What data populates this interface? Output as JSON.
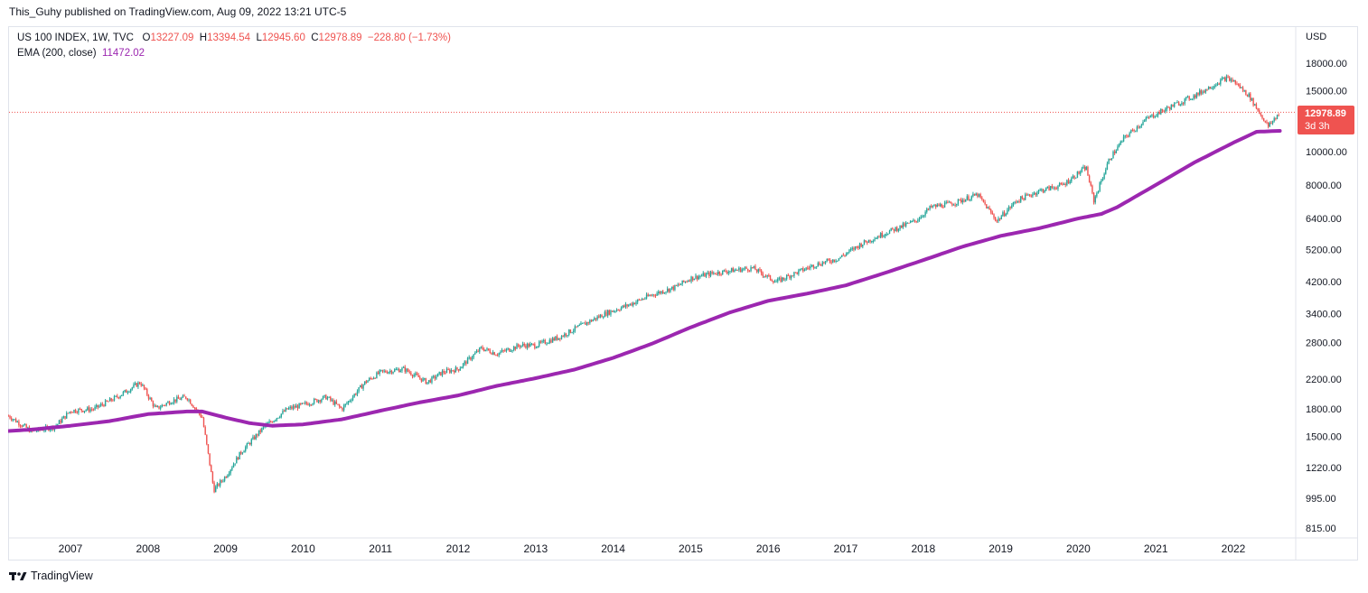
{
  "header": {
    "published_text": "This_Guhy published on TradingView.com, Aug 09, 2022 13:21 UTC-5"
  },
  "legend": {
    "symbol": "US 100 INDEX, 1W, TVC",
    "open_label": "O",
    "open": "13227.09",
    "high_label": "H",
    "high": "13394.54",
    "low_label": "L",
    "low": "12945.60",
    "close_label": "C",
    "close": "12978.89",
    "change": "−228.80 (−1.73%)",
    "ema_label": "EMA (200, close)",
    "ema_value": "11472.02"
  },
  "price_tag": {
    "value": "12978.89",
    "countdown": "3d 3h"
  },
  "footer": {
    "brand": "TradingView"
  },
  "colors": {
    "up": "#26a69a",
    "down": "#ef5350",
    "ema": "#9c27b0",
    "price_line": "#ef5350"
  },
  "chart_data": {
    "type": "candlestick",
    "scale": "log",
    "currency": "USD",
    "y_ticks": [
      18000,
      15000,
      10000,
      8000,
      6400,
      5200,
      4200,
      3400,
      2800,
      2200,
      1800,
      1500,
      1220,
      995,
      815
    ],
    "y_tick_labels": [
      "18000.00",
      "15000.00",
      "10000.00",
      "8000.00",
      "6400.00",
      "5200.00",
      "4200.00",
      "3400.00",
      "2800.00",
      "2200.00",
      "1800.00",
      "1500.00",
      "1220.00",
      "995.00",
      "815.00"
    ],
    "x_ticks": [
      "2007",
      "2008",
      "2009",
      "2010",
      "2011",
      "2012",
      "2013",
      "2014",
      "2015",
      "2016",
      "2017",
      "2018",
      "2019",
      "2020",
      "2021",
      "2022"
    ],
    "series": [
      {
        "name": "US 100 INDEX",
        "kind": "close",
        "x": [
          2006.2,
          2006.5,
          2006.8,
          2007.0,
          2007.3,
          2007.6,
          2007.9,
          2008.1,
          2008.3,
          2008.5,
          2008.7,
          2008.85,
          2009.0,
          2009.2,
          2009.5,
          2009.8,
          2010.0,
          2010.3,
          2010.5,
          2010.8,
          2011.0,
          2011.3,
          2011.6,
          2011.8,
          2012.0,
          2012.3,
          2012.5,
          2012.8,
          2013.0,
          2013.3,
          2013.6,
          2013.9,
          2014.2,
          2014.5,
          2014.8,
          2015.0,
          2015.3,
          2015.6,
          2015.8,
          2016.1,
          2016.3,
          2016.6,
          2016.9,
          2017.2,
          2017.5,
          2017.9,
          2018.1,
          2018.4,
          2018.7,
          2018.95,
          2019.2,
          2019.5,
          2019.8,
          2020.1,
          2020.2,
          2020.4,
          2020.6,
          2020.9,
          2021.2,
          2021.5,
          2021.9,
          2022.0,
          2022.2,
          2022.45,
          2022.6
        ],
        "values": [
          1720,
          1550,
          1600,
          1780,
          1800,
          1950,
          2150,
          1800,
          1900,
          1950,
          1700,
          1050,
          1150,
          1350,
          1600,
          1800,
          1850,
          1950,
          1800,
          2150,
          2300,
          2350,
          2150,
          2300,
          2350,
          2700,
          2600,
          2750,
          2750,
          2900,
          3150,
          3400,
          3600,
          3850,
          4050,
          4300,
          4450,
          4550,
          4600,
          4200,
          4400,
          4700,
          4900,
          5400,
          5800,
          6300,
          6900,
          7100,
          7500,
          6300,
          7200,
          7700,
          8000,
          9000,
          7200,
          9500,
          11000,
          12500,
          13500,
          14500,
          16300,
          16000,
          14500,
          11800,
          13000
        ]
      },
      {
        "name": "EMA (200, close)",
        "kind": "ema",
        "x": [
          2006.2,
          2006.5,
          2007.0,
          2007.5,
          2008.0,
          2008.5,
          2008.7,
          2009.0,
          2009.3,
          2009.6,
          2010.0,
          2010.5,
          2011.0,
          2011.5,
          2012.0,
          2012.5,
          2013.0,
          2013.5,
          2014.0,
          2014.5,
          2015.0,
          2015.5,
          2016.0,
          2016.5,
          2017.0,
          2017.5,
          2018.0,
          2018.5,
          2019.0,
          2019.5,
          2020.0,
          2020.3,
          2020.5,
          2021.0,
          2021.5,
          2022.0,
          2022.3,
          2022.6
        ],
        "values": [
          1555,
          1570,
          1610,
          1660,
          1740,
          1770,
          1770,
          1700,
          1640,
          1610,
          1625,
          1680,
          1780,
          1880,
          1970,
          2100,
          2210,
          2340,
          2530,
          2780,
          3100,
          3420,
          3700,
          3880,
          4100,
          4450,
          4850,
          5300,
          5700,
          6000,
          6400,
          6600,
          6900,
          8000,
          9300,
          10600,
          11400,
          11472
        ]
      }
    ],
    "last_price": 12978.89
  }
}
